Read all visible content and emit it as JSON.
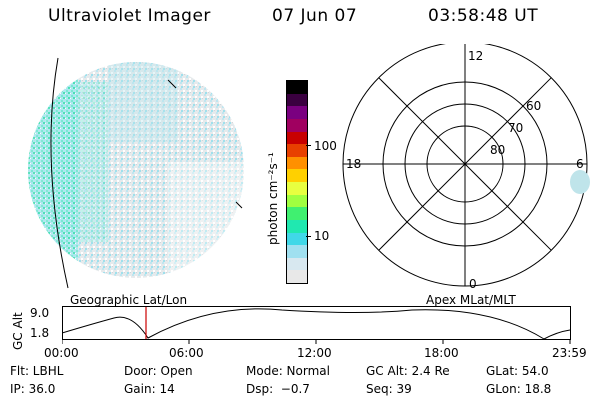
{
  "header": {
    "title": "Ultraviolet Imager",
    "date": "07 Jun 07",
    "time": "03:58:48 UT"
  },
  "colorbar": {
    "unit_label": "photon cm⁻²s⁻¹",
    "ticks": [
      "100",
      "10"
    ],
    "colors": [
      "#000000",
      "#3a0040",
      "#7a0080",
      "#a00060",
      "#c80000",
      "#e84000",
      "#ff9000",
      "#ffd000",
      "#e8ff40",
      "#a0ff40",
      "#40f070",
      "#20e8b0",
      "#40d8e8",
      "#a0e0f0",
      "#d8e8f0",
      "#e8e8e8"
    ]
  },
  "polar_grid": {
    "mlt_labels": {
      "top": "12",
      "left": "18",
      "right": "6",
      "bottom": "0"
    },
    "lat_labels": [
      "60",
      "70",
      "80"
    ]
  },
  "labels": {
    "geographic": "Geographic Lat/Lon",
    "apex": "Apex MLat/MLT"
  },
  "altitude_plot": {
    "axis_label": "GC Alt",
    "y_ticks": [
      "9.0",
      "1.8"
    ],
    "x_ticks": [
      "00:00",
      "06:00",
      "12:00",
      "18:00",
      "23:59"
    ],
    "marker_color": "#cc0000"
  },
  "info": {
    "flt": "Flt: LBHL",
    "door": "Door: Open",
    "mode": "Mode: Normal",
    "gc_alt": "GC Alt: 2.4 Re",
    "glat": "GLat: 54.0",
    "ip": "IP: 36.0",
    "gain": "Gain: 14",
    "dsp": "Dsp:  −0.7",
    "seq": "Seq: 39",
    "glon": "GLon: 18.8"
  }
}
